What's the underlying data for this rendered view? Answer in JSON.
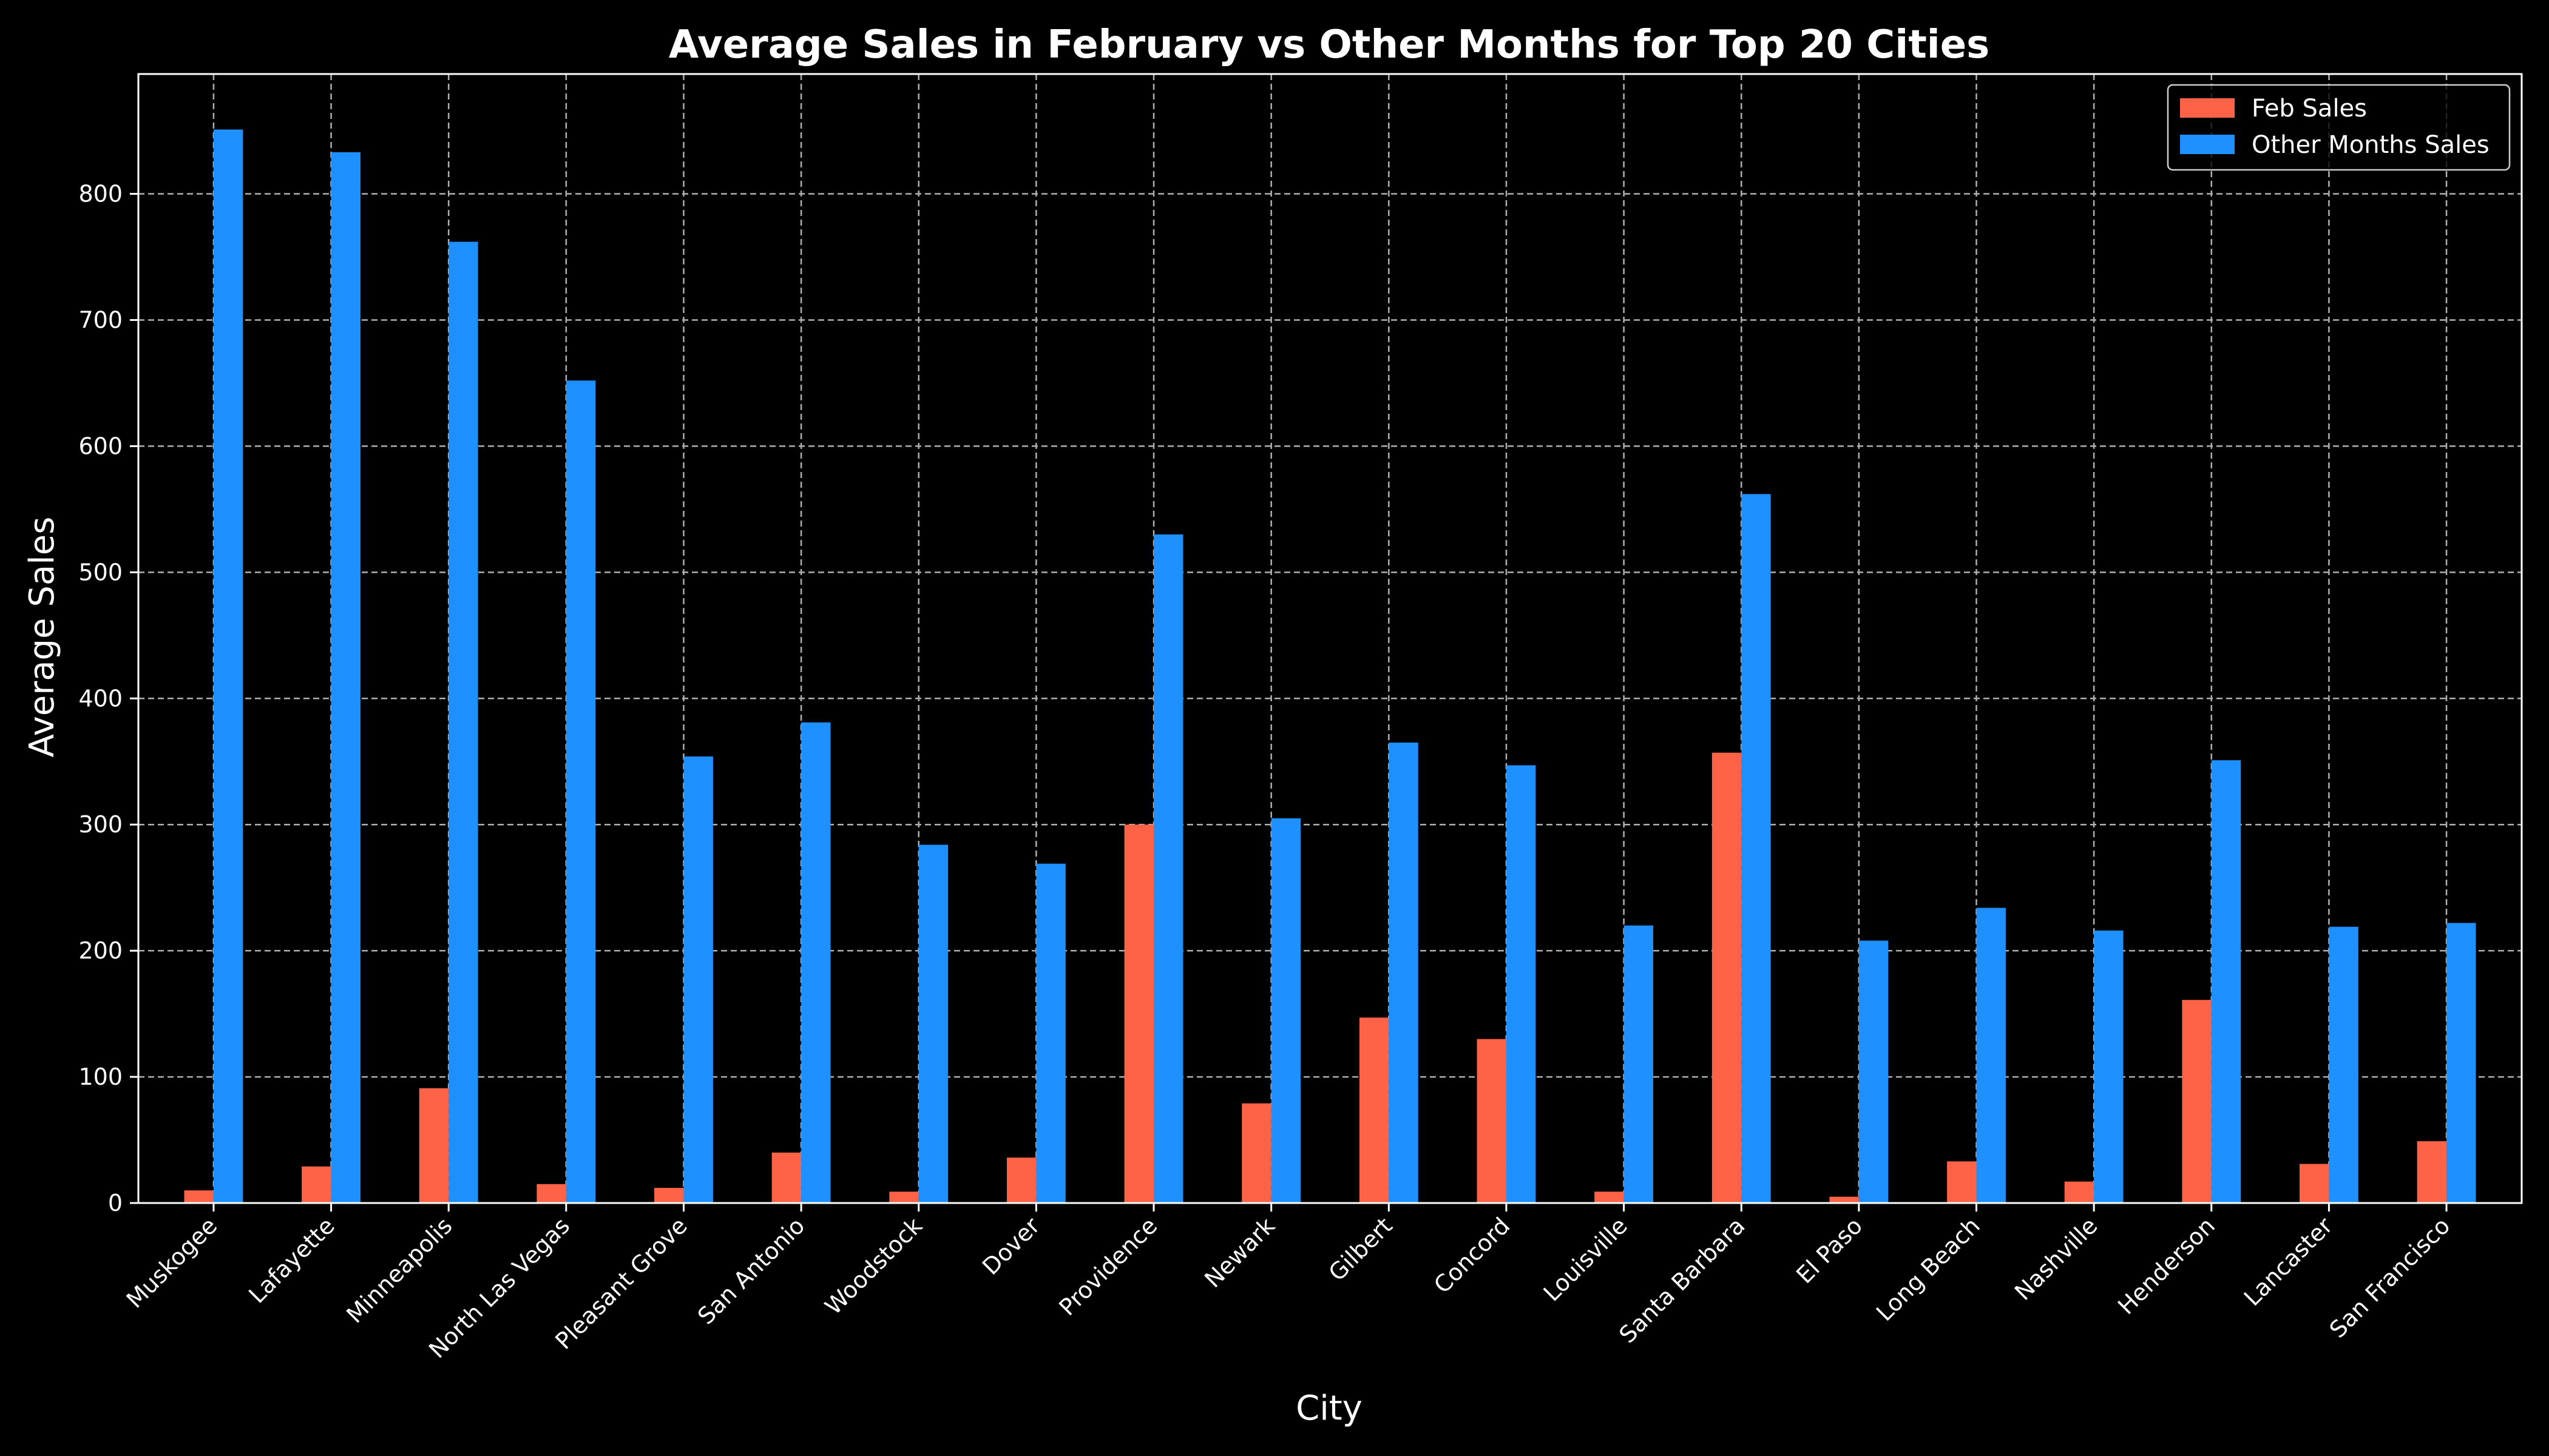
{
  "chart_data": {
    "type": "bar",
    "title": "Average Sales in February vs Other Months for Top 20 Cities",
    "xlabel": "City",
    "ylabel": "Average Sales",
    "ylim": [
      0,
      895
    ],
    "yticks": [
      0,
      100,
      200,
      300,
      400,
      500,
      600,
      700,
      800
    ],
    "grid": true,
    "legend_position": "top-right",
    "categories": [
      "Muskogee",
      "Lafayette",
      "Minneapolis",
      "North Las Vegas",
      "Pleasant Grove",
      "San Antonio",
      "Woodstock",
      "Dover",
      "Providence",
      "Newark",
      "Gilbert",
      "Concord",
      "Louisville",
      "Santa Barbara",
      "El Paso",
      "Long Beach",
      "Nashville",
      "Henderson",
      "Lancaster",
      "San Francisco"
    ],
    "series": [
      {
        "name": "Feb Sales",
        "color": "#ff6347",
        "values": [
          10,
          29,
          91,
          15,
          12,
          40,
          9,
          36,
          300,
          79,
          147,
          130,
          9,
          357,
          5,
          33,
          17,
          161,
          31,
          49
        ]
      },
      {
        "name": "Other Months Sales",
        "color": "#1e90ff",
        "values": [
          851,
          833,
          762,
          652,
          354,
          381,
          284,
          269,
          530,
          305,
          365,
          347,
          220,
          562,
          208,
          234,
          216,
          351,
          219,
          222
        ]
      }
    ]
  }
}
